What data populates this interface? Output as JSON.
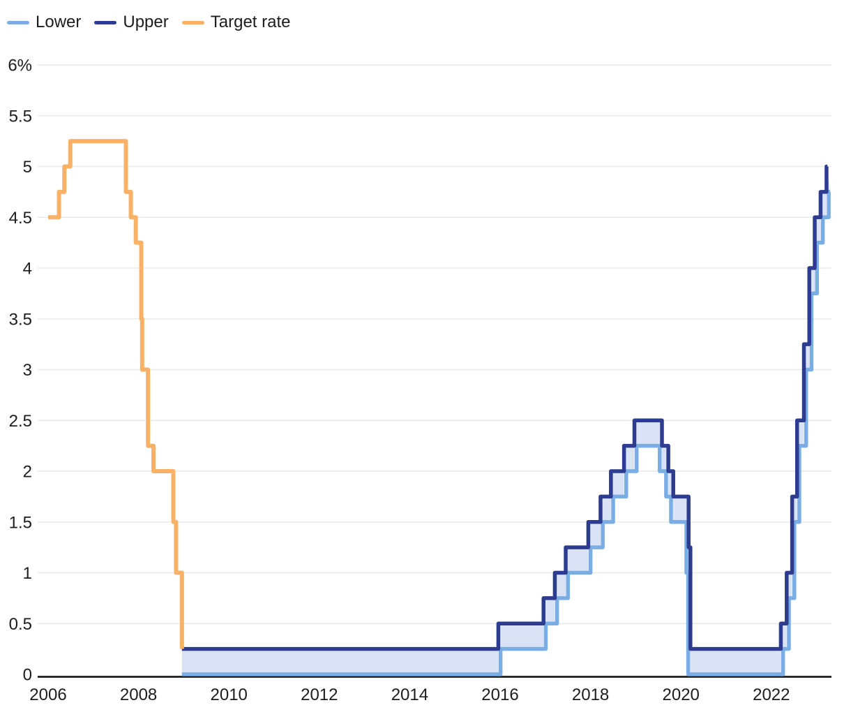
{
  "chart_data": {
    "type": "line",
    "subtype": "step",
    "title": "",
    "unit": "%",
    "xlim": [
      2006,
      2023.3
    ],
    "ylim": [
      0,
      6
    ],
    "grid": true,
    "legend_position": "top-left",
    "legend": [
      {
        "label": "Lower",
        "color": "#7aade3"
      },
      {
        "label": "Upper",
        "color": "#2d3c8f"
      },
      {
        "label": "Target rate",
        "color": "#f9b168"
      }
    ],
    "band_fill_color": "#d9e3f5",
    "band": {
      "lower": "Lower",
      "upper": "Upper"
    },
    "y_ticks": [
      {
        "label": "6%",
        "value": 6
      },
      {
        "label": "5.5",
        "value": 5.5
      },
      {
        "label": "5",
        "value": 5
      },
      {
        "label": "4.5",
        "value": 4.5
      },
      {
        "label": "4",
        "value": 4
      },
      {
        "label": "3.5",
        "value": 3.5
      },
      {
        "label": "3",
        "value": 3
      },
      {
        "label": "2.5",
        "value": 2.5
      },
      {
        "label": "2",
        "value": 2
      },
      {
        "label": "1.5",
        "value": 1.5
      },
      {
        "label": "1",
        "value": 1
      },
      {
        "label": "0.5",
        "value": 0.5
      },
      {
        "label": "0",
        "value": 0
      }
    ],
    "x_ticks": [
      {
        "label": "2006",
        "value": 2006
      },
      {
        "label": "2008",
        "value": 2008
      },
      {
        "label": "2010",
        "value": 2010
      },
      {
        "label": "2012",
        "value": 2012
      },
      {
        "label": "2014",
        "value": 2014
      },
      {
        "label": "2016",
        "value": 2016
      },
      {
        "label": "2018",
        "value": 2018
      },
      {
        "label": "2020",
        "value": 2020
      },
      {
        "label": "2022",
        "value": 2022
      }
    ],
    "series": [
      {
        "name": "Lower",
        "role": "lower",
        "color": "#7aade3",
        "x_end": 2023.3,
        "dodge": true,
        "points": [
          [
            2008.96,
            0
          ],
          [
            2015.96,
            0.25
          ],
          [
            2016.96,
            0.5
          ],
          [
            2017.21,
            0.75
          ],
          [
            2017.45,
            1.0
          ],
          [
            2017.95,
            1.25
          ],
          [
            2018.22,
            1.5
          ],
          [
            2018.45,
            1.75
          ],
          [
            2018.74,
            2.0
          ],
          [
            2018.97,
            2.25
          ],
          [
            2019.58,
            2.0
          ],
          [
            2019.72,
            1.75
          ],
          [
            2019.83,
            1.5
          ],
          [
            2020.17,
            1.0
          ],
          [
            2020.21,
            0
          ],
          [
            2022.21,
            0.25
          ],
          [
            2022.34,
            0.75
          ],
          [
            2022.46,
            1.5
          ],
          [
            2022.57,
            2.25
          ],
          [
            2022.72,
            3.0
          ],
          [
            2022.84,
            3.75
          ],
          [
            2022.96,
            4.25
          ],
          [
            2023.09,
            4.5
          ],
          [
            2023.22,
            4.75
          ]
        ]
      },
      {
        "name": "Upper",
        "role": "upper",
        "color": "#2d3c8f",
        "x_end": 2023.24,
        "dodge": false,
        "points": [
          [
            2008.96,
            0.25
          ],
          [
            2015.96,
            0.5
          ],
          [
            2016.96,
            0.75
          ],
          [
            2017.21,
            1.0
          ],
          [
            2017.45,
            1.25
          ],
          [
            2017.95,
            1.5
          ],
          [
            2018.22,
            1.75
          ],
          [
            2018.45,
            2.0
          ],
          [
            2018.74,
            2.25
          ],
          [
            2018.97,
            2.5
          ],
          [
            2019.58,
            2.25
          ],
          [
            2019.72,
            2.0
          ],
          [
            2019.83,
            1.75
          ],
          [
            2020.17,
            1.25
          ],
          [
            2020.21,
            0.25
          ],
          [
            2022.21,
            0.5
          ],
          [
            2022.34,
            1.0
          ],
          [
            2022.46,
            1.75
          ],
          [
            2022.57,
            2.5
          ],
          [
            2022.72,
            3.25
          ],
          [
            2022.84,
            4.0
          ],
          [
            2022.96,
            4.5
          ],
          [
            2023.09,
            4.75
          ],
          [
            2023.22,
            5.0
          ]
        ]
      },
      {
        "name": "Target rate",
        "role": "target",
        "color": "#f9b168",
        "x_end": null,
        "dodge": false,
        "points": [
          [
            2006.0,
            4.5
          ],
          [
            2006.24,
            4.75
          ],
          [
            2006.36,
            5.0
          ],
          [
            2006.49,
            5.25
          ],
          [
            2007.72,
            4.75
          ],
          [
            2007.83,
            4.5
          ],
          [
            2007.94,
            4.25
          ],
          [
            2008.06,
            3.5
          ],
          [
            2008.08,
            3.0
          ],
          [
            2008.21,
            2.25
          ],
          [
            2008.33,
            2.0
          ],
          [
            2008.77,
            1.5
          ],
          [
            2008.83,
            1.0
          ],
          [
            2008.96,
            0.25
          ]
        ]
      }
    ]
  },
  "colors": {
    "grid": "#e9e9e9",
    "axis": "#141414",
    "text": "#1d1d1d",
    "background": "#ffffff"
  }
}
